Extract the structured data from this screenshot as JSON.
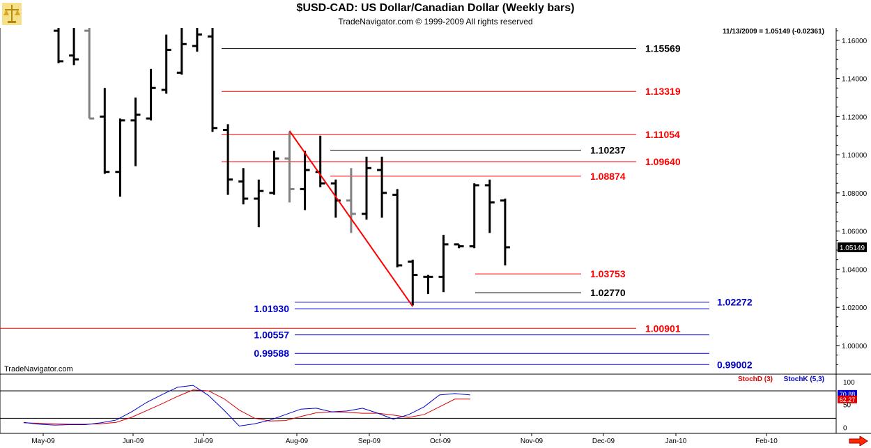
{
  "header": {
    "title": "$USD-CAD:  US Dollar/Canadian Dollar  (Weekly bars)",
    "subtitle": "TradeNavigator.com © 1999-2009 All rights reserved"
  },
  "chart_data": [
    {
      "type": "ohlc",
      "readout": "11/13/2009 = 1.05149 (-0.02361)",
      "watermark": "TradeNavigator.com",
      "last_price_label": "1.05149",
      "ylim": [
        0.985,
        1.1665
      ],
      "y_ticks": [
        "1.16000",
        "1.14000",
        "1.12000",
        "1.10000",
        "1.08000",
        "1.06000",
        "1.04000",
        "1.02000",
        "1.00000"
      ],
      "x_tick_labels": [
        "May-09",
        "Jun-09",
        "Jul-09",
        "Aug-09",
        "Sep-09",
        "Oct-09",
        "Nov-09",
        "Dec-09",
        "Jan-10",
        "Feb-10"
      ],
      "bars": [
        {
          "high": 1.17,
          "low": 1.148,
          "open": 1.165,
          "close": 1.149
        },
        {
          "high": 1.17,
          "low": 1.147,
          "open": 1.152,
          "close": 1.15
        },
        {
          "high": 1.17,
          "low": 1.119,
          "open": 1.165,
          "close": 1.119
        },
        {
          "high": 1.135,
          "low": 1.09,
          "open": 1.12,
          "close": 1.091
        },
        {
          "high": 1.119,
          "low": 1.078,
          "open": 1.091,
          "close": 1.118
        },
        {
          "high": 1.13,
          "low": 1.094,
          "open": 1.118,
          "close": 1.121
        },
        {
          "high": 1.145,
          "low": 1.118,
          "open": 1.119,
          "close": 1.135
        },
        {
          "high": 1.163,
          "low": 1.132,
          "open": 1.134,
          "close": 1.155
        },
        {
          "high": 1.167,
          "low": 1.142,
          "open": 1.143,
          "close": 1.158
        },
        {
          "high": 1.17,
          "low": 1.154,
          "open": 1.157,
          "close": 1.163
        },
        {
          "high": 1.168,
          "low": 1.112,
          "open": 1.162,
          "close": 1.114
        },
        {
          "high": 1.116,
          "low": 1.079,
          "open": 1.113,
          "close": 1.087
        },
        {
          "high": 1.093,
          "low": 1.074,
          "open": 1.086,
          "close": 1.077
        },
        {
          "high": 1.087,
          "low": 1.062,
          "open": 1.077,
          "close": 1.081
        },
        {
          "high": 1.102,
          "low": 1.079,
          "open": 1.08,
          "close": 1.098
        },
        {
          "high": 1.112,
          "low": 1.075,
          "open": 1.098,
          "close": 1.082
        },
        {
          "high": 1.102,
          "low": 1.071,
          "open": 1.082,
          "close": 1.092
        },
        {
          "high": 1.11,
          "low": 1.083,
          "open": 1.091,
          "close": 1.085
        },
        {
          "high": 1.087,
          "low": 1.067,
          "open": 1.085,
          "close": 1.076
        },
        {
          "high": 1.093,
          "low": 1.059,
          "open": 1.076,
          "close": 1.069
        },
        {
          "high": 1.099,
          "low": 1.066,
          "open": 1.069,
          "close": 1.093
        },
        {
          "high": 1.099,
          "low": 1.067,
          "open": 1.092,
          "close": 1.08
        },
        {
          "high": 1.082,
          "low": 1.041,
          "open": 1.079,
          "close": 1.042
        },
        {
          "high": 1.045,
          "low": 1.021,
          "open": 1.044,
          "close": 1.037
        },
        {
          "high": 1.037,
          "low": 1.027,
          "open": 1.036,
          "close": 1.036
        },
        {
          "high": 1.058,
          "low": 1.028,
          "open": 1.036,
          "close": 1.053
        },
        {
          "high": 1.053,
          "low": 1.051,
          "open": 1.053,
          "close": 1.052
        },
        {
          "high": 1.085,
          "low": 1.051,
          "open": 1.052,
          "close": 1.084
        },
        {
          "high": 1.087,
          "low": 1.059,
          "open": 1.084,
          "close": 1.075
        },
        {
          "high": 1.077,
          "low": 1.042,
          "open": 1.076,
          "close": 1.0515
        }
      ],
      "levels": [
        {
          "value": 1.15569,
          "label": "1.15569",
          "color": "#000000"
        },
        {
          "value": 1.13319,
          "label": "1.13319",
          "color": "#ff0000"
        },
        {
          "value": 1.11054,
          "label": "1.11054",
          "color": "#ff0000"
        },
        {
          "value": 1.10237,
          "label": "1.10237",
          "color": "#000000"
        },
        {
          "value": 1.0964,
          "label": "1.09640",
          "color": "#ff0000"
        },
        {
          "value": 1.08874,
          "label": "1.08874",
          "color": "#ff0000"
        },
        {
          "value": 1.03753,
          "label": "1.03753",
          "color": "#ff0000"
        },
        {
          "value": 1.0277,
          "label": "1.02770",
          "color": "#000000"
        },
        {
          "value": 1.02272,
          "label": "1.02272",
          "color": "#0000cc"
        },
        {
          "value": 1.0193,
          "label": "1.01930",
          "color": "#0000cc"
        },
        {
          "value": 1.00901,
          "label": "1.00901",
          "color": "#ff0000"
        },
        {
          "value": 1.00557,
          "label": "1.00557",
          "color": "#0000cc"
        },
        {
          "value": 0.99588,
          "label": "0.99588",
          "color": "#0000cc"
        },
        {
          "value": 0.99002,
          "label": "0.99002",
          "color": "#0000cc"
        }
      ],
      "trendline": {
        "from": {
          "bar": 15,
          "value": 1.1125
        },
        "to": {
          "bar": 23,
          "value": 1.0205
        },
        "color": "#ff0000"
      }
    },
    {
      "type": "line",
      "legend": [
        "StochD (3)",
        "StochK (5,3)"
      ],
      "y_ticks": [
        "100",
        "50",
        "0"
      ],
      "ylim": [
        -10,
        112
      ],
      "value_labels": [
        "70.88",
        "62.27"
      ],
      "series": [
        {
          "name": "StochD (3)",
          "color": "#dd0000",
          "values": [
            10,
            9,
            8,
            7,
            7,
            8,
            11,
            22,
            37,
            52,
            68,
            82,
            80,
            63,
            38,
            20,
            14,
            15,
            24,
            32,
            34,
            33,
            31,
            31,
            27,
            22,
            28,
            45,
            62,
            62
          ]
        },
        {
          "name": "StochK (5,3)",
          "color": "#0000cc",
          "values": [
            11,
            7,
            5,
            6,
            6,
            10,
            16,
            34,
            55,
            72,
            88,
            92,
            70,
            38,
            3,
            8,
            16,
            28,
            40,
            42,
            34,
            36,
            42,
            31,
            18,
            28,
            45,
            71,
            74,
            71
          ]
        }
      ]
    }
  ]
}
